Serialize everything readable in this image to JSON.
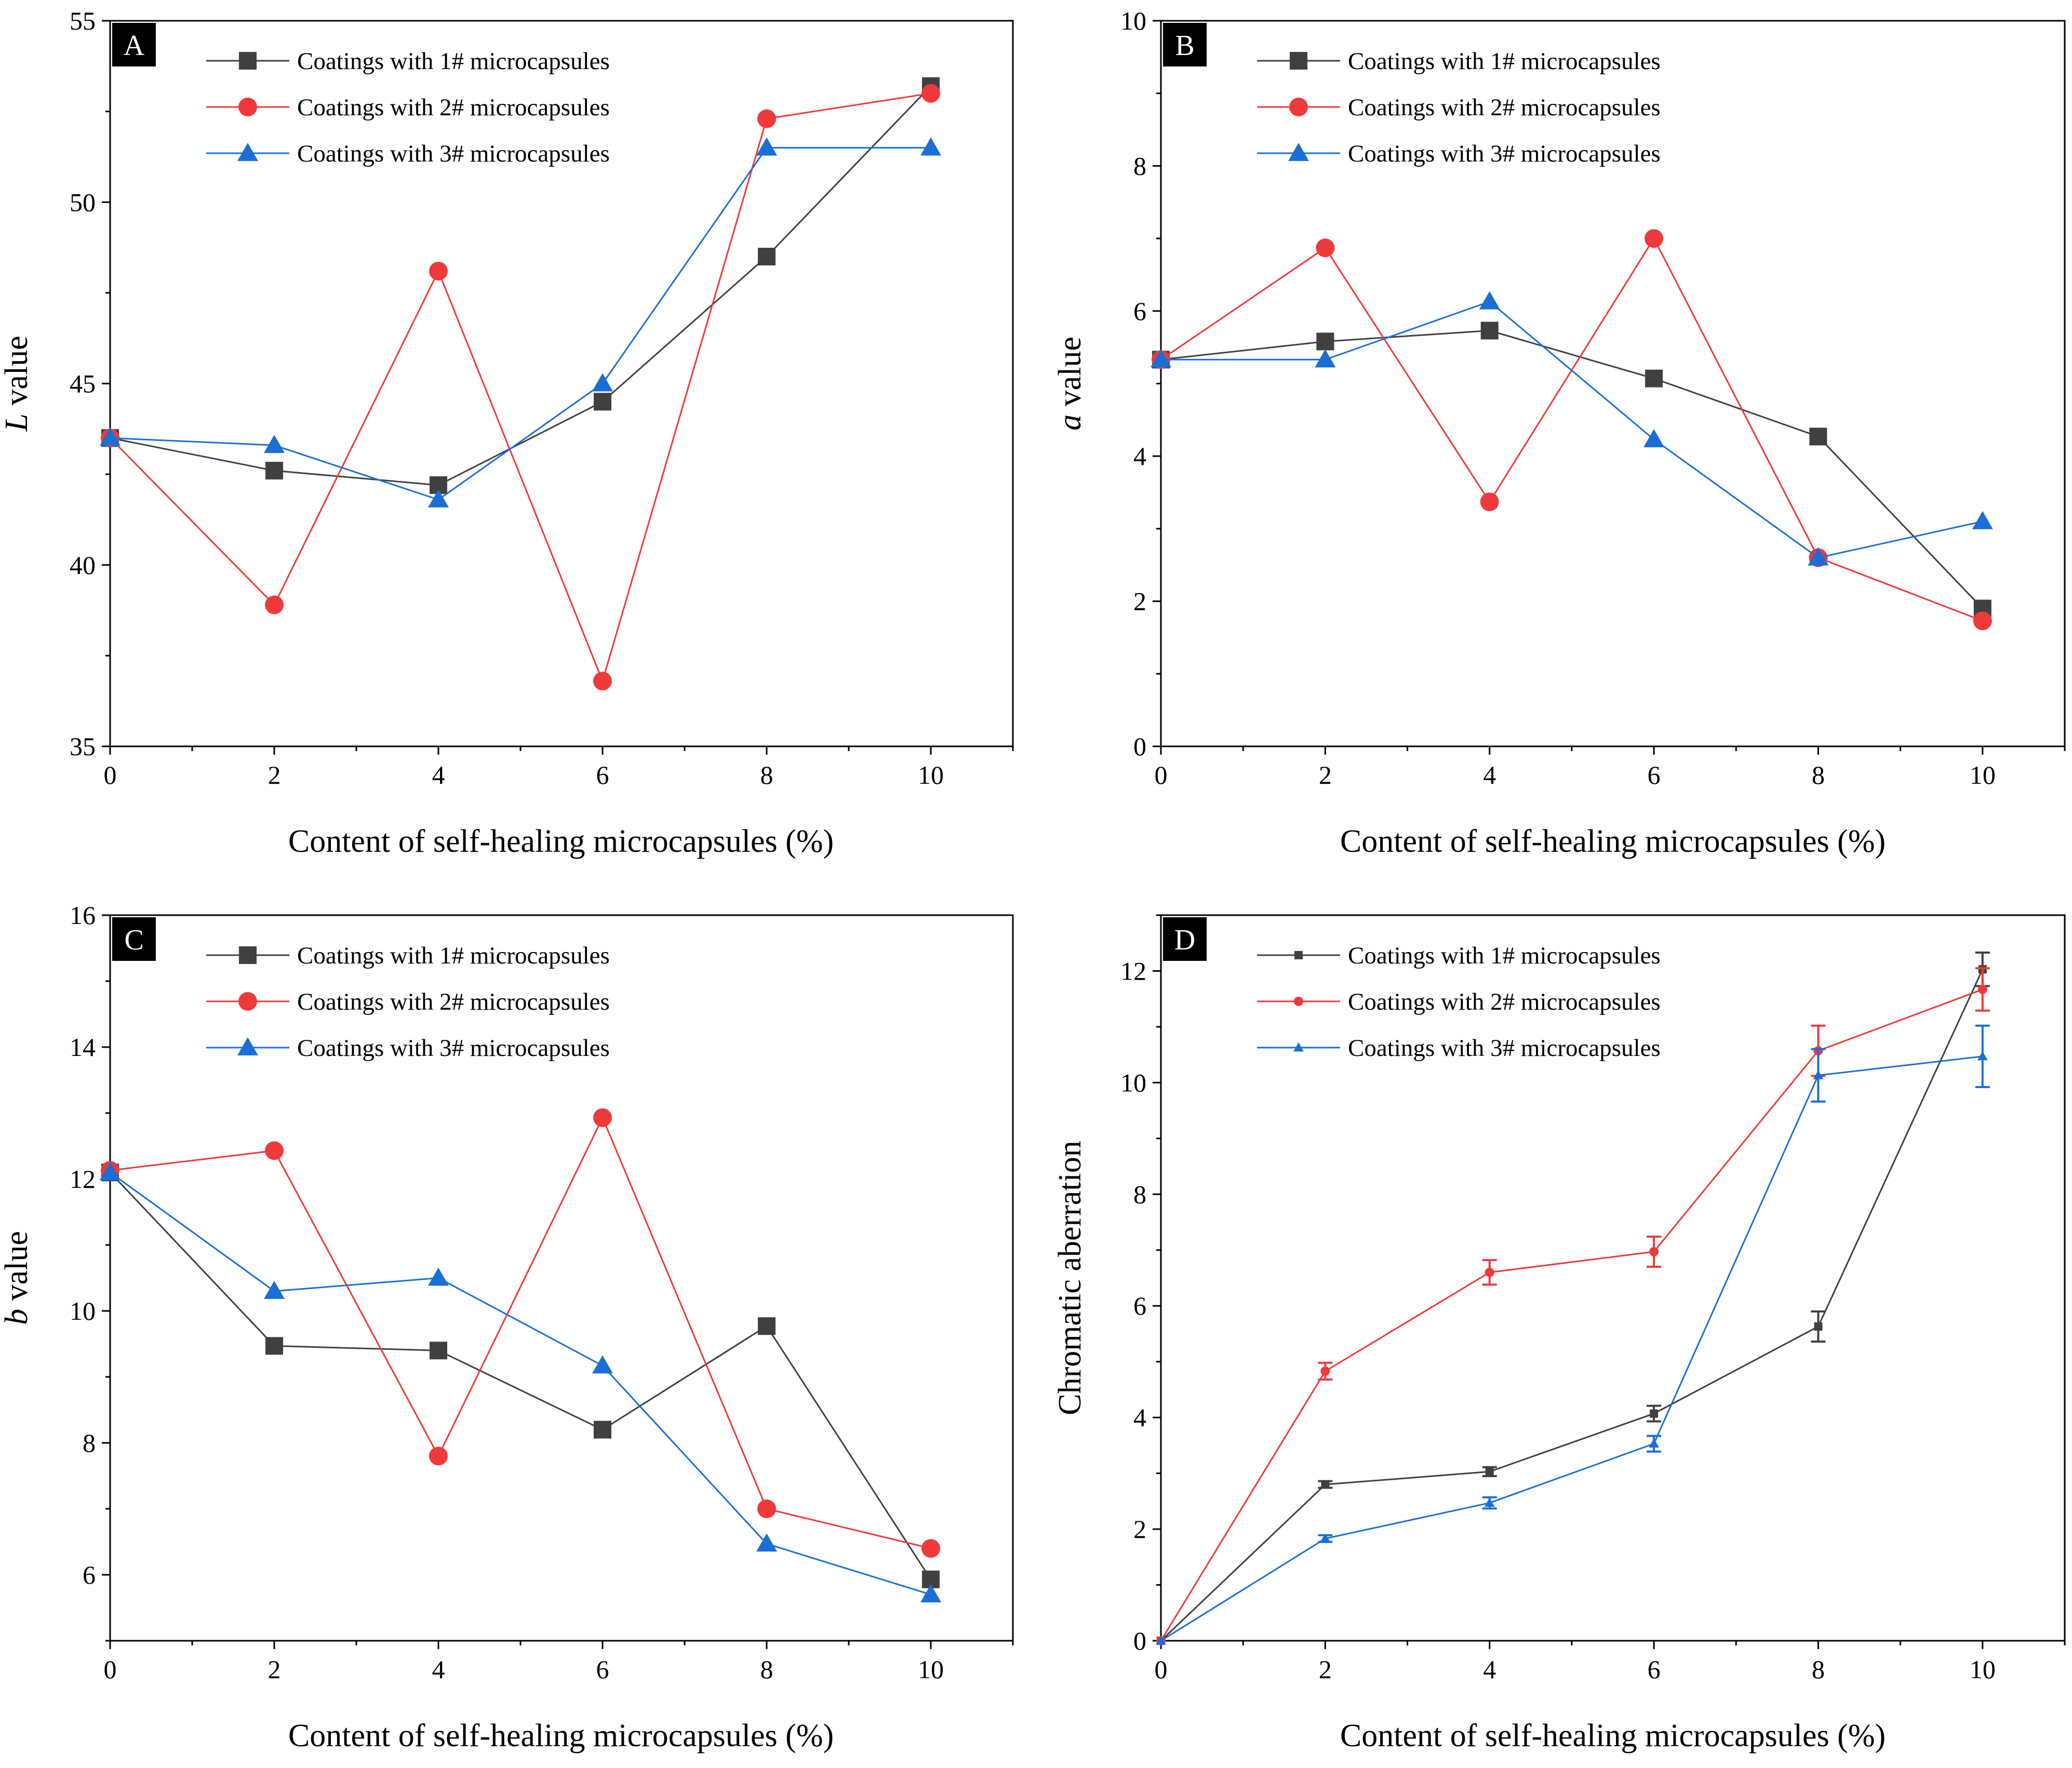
{
  "chart_data": [
    {
      "panel": "A",
      "type": "line",
      "xlabel": "Content of self-healing microcapsules (%)",
      "ylabel_italic": "L",
      "ylabel_rest": " value",
      "x": [
        0,
        2,
        4,
        6,
        8,
        10
      ],
      "xlim": [
        0,
        11
      ],
      "ylim": [
        35,
        55
      ],
      "xticks": [
        0,
        2,
        4,
        6,
        8,
        10
      ],
      "yticks": [
        35,
        40,
        45,
        50,
        55
      ],
      "legend_position": "top-left",
      "series": [
        {
          "name": "Coatings with 1# microcapsules",
          "color": "#404040",
          "marker": "square",
          "values": [
            43.5,
            42.6,
            42.2,
            44.5,
            48.5,
            53.2
          ]
        },
        {
          "name": "Coatings with 2# microcapsules",
          "color": "#f0393a",
          "marker": "circle",
          "values": [
            43.5,
            38.9,
            48.1,
            36.8,
            52.3,
            53.0
          ]
        },
        {
          "name": "Coatings with 3# microcapsules",
          "color": "#1a6fd6",
          "marker": "triangle",
          "values": [
            43.5,
            43.3,
            41.8,
            45.0,
            51.5,
            51.5
          ]
        }
      ]
    },
    {
      "panel": "B",
      "type": "line",
      "xlabel": "Content of self-healing microcapsules (%)",
      "ylabel_italic": "a",
      "ylabel_rest": " value",
      "x": [
        0,
        2,
        4,
        6,
        8,
        10
      ],
      "xlim": [
        0,
        11
      ],
      "ylim": [
        0,
        10
      ],
      "xticks": [
        0,
        2,
        4,
        6,
        8,
        10
      ],
      "yticks": [
        0,
        2,
        4,
        6,
        8,
        10
      ],
      "legend_position": "top-left",
      "series": [
        {
          "name": "Coatings with 1# microcapsules",
          "color": "#404040",
          "marker": "square",
          "values": [
            5.33,
            5.58,
            5.73,
            5.07,
            4.27,
            1.9
          ]
        },
        {
          "name": "Coatings with 2# microcapsules",
          "color": "#f0393a",
          "marker": "circle",
          "values": [
            5.33,
            6.87,
            3.37,
            7.0,
            2.6,
            1.73
          ]
        },
        {
          "name": "Coatings with 3# microcapsules",
          "color": "#1a6fd6",
          "marker": "triangle",
          "values": [
            5.33,
            5.33,
            6.13,
            4.23,
            2.6,
            3.1
          ]
        }
      ]
    },
    {
      "panel": "C",
      "type": "line",
      "xlabel": "Content of self-healing microcapsules (%)",
      "ylabel_italic": "b",
      "ylabel_rest": " value",
      "x": [
        0,
        2,
        4,
        6,
        8,
        10
      ],
      "xlim": [
        0,
        11
      ],
      "ylim": [
        5,
        16
      ],
      "xticks": [
        0,
        2,
        4,
        6,
        8,
        10
      ],
      "yticks": [
        6,
        8,
        10,
        12,
        14,
        16
      ],
      "legend_position": "top-left",
      "series": [
        {
          "name": "Coatings with 1# microcapsules",
          "color": "#404040",
          "marker": "square",
          "values": [
            12.1,
            9.47,
            9.4,
            8.2,
            9.77,
            5.93
          ]
        },
        {
          "name": "Coatings with 2# microcapsules",
          "color": "#f0393a",
          "marker": "circle",
          "values": [
            12.13,
            12.43,
            7.8,
            12.93,
            7.0,
            6.4
          ]
        },
        {
          "name": "Coatings with 3# microcapsules",
          "color": "#1a6fd6",
          "marker": "triangle",
          "values": [
            12.1,
            10.3,
            10.5,
            9.17,
            6.47,
            5.7
          ]
        }
      ]
    },
    {
      "panel": "D",
      "type": "line",
      "xlabel": "Content of self-healing microcapsules (%)",
      "ylabel_italic": "",
      "ylabel_rest": "Chromatic aberration",
      "x": [
        0,
        2,
        4,
        6,
        8,
        10
      ],
      "xlim": [
        0,
        11
      ],
      "ylim": [
        0,
        13
      ],
      "xticks": [
        0,
        2,
        4,
        6,
        8,
        10
      ],
      "yticks": [
        0,
        2,
        4,
        6,
        8,
        10,
        12
      ],
      "legend_position": "top-left",
      "series": [
        {
          "name": "Coatings with 1# microcapsules",
          "color": "#404040",
          "marker": "small-square",
          "values": [
            0,
            2.8,
            3.03,
            4.07,
            5.63,
            12.03
          ],
          "errors": [
            0,
            0.06,
            0.08,
            0.14,
            0.27,
            0.3
          ]
        },
        {
          "name": "Coatings with 2# microcapsules",
          "color": "#f0393a",
          "marker": "small-circle",
          "values": [
            0,
            4.83,
            6.6,
            6.97,
            10.57,
            11.67
          ],
          "errors": [
            0,
            0.15,
            0.22,
            0.27,
            0.45,
            0.38
          ]
        },
        {
          "name": "Coatings with 3# microcapsules",
          "color": "#1a6fd6",
          "marker": "small-triangle",
          "values": [
            0,
            1.83,
            2.47,
            3.53,
            10.13,
            10.47
          ],
          "errors": [
            0,
            0.06,
            0.1,
            0.14,
            0.47,
            0.55
          ]
        }
      ]
    }
  ]
}
